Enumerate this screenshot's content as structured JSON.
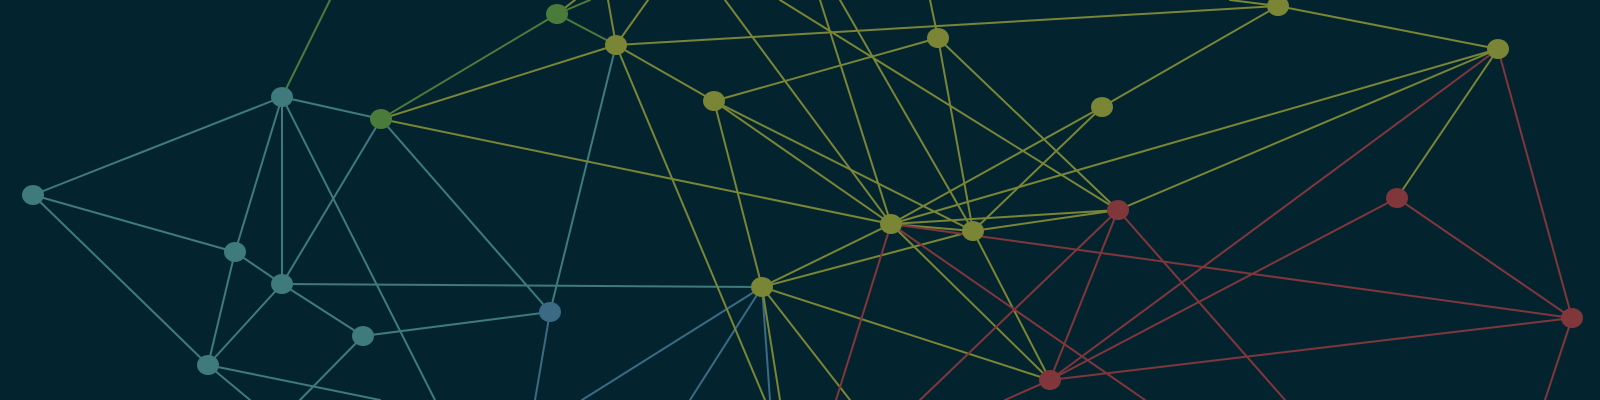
{
  "palette": {
    "background": "#03242f",
    "teal": "#3f7a7e",
    "green": "#4a7b3a",
    "olive": "#7a8535",
    "red": "#80363a",
    "blue": "#3b6a84"
  },
  "description_nodes": [
    {
      "id": "A",
      "group": "teal"
    },
    {
      "id": "B",
      "group": "teal"
    },
    {
      "id": "C",
      "group": "teal"
    },
    {
      "id": "D",
      "group": "teal"
    },
    {
      "id": "E",
      "group": "teal"
    },
    {
      "id": "F",
      "group": "teal"
    },
    {
      "id": "G",
      "group": "green"
    },
    {
      "id": "H",
      "group": "green"
    },
    {
      "id": "I",
      "group": "olive"
    },
    {
      "id": "J",
      "group": "blue"
    },
    {
      "id": "K",
      "group": "olive"
    },
    {
      "id": "L",
      "group": "olive"
    },
    {
      "id": "M",
      "group": "olive"
    },
    {
      "id": "N",
      "group": "olive"
    },
    {
      "id": "O",
      "group": "olive"
    },
    {
      "id": "P",
      "group": "red"
    },
    {
      "id": "Q",
      "group": "olive"
    },
    {
      "id": "R",
      "group": "olive"
    },
    {
      "id": "S",
      "group": "red"
    },
    {
      "id": "T",
      "group": "red"
    },
    {
      "id": "U",
      "group": "red"
    }
  ]
}
